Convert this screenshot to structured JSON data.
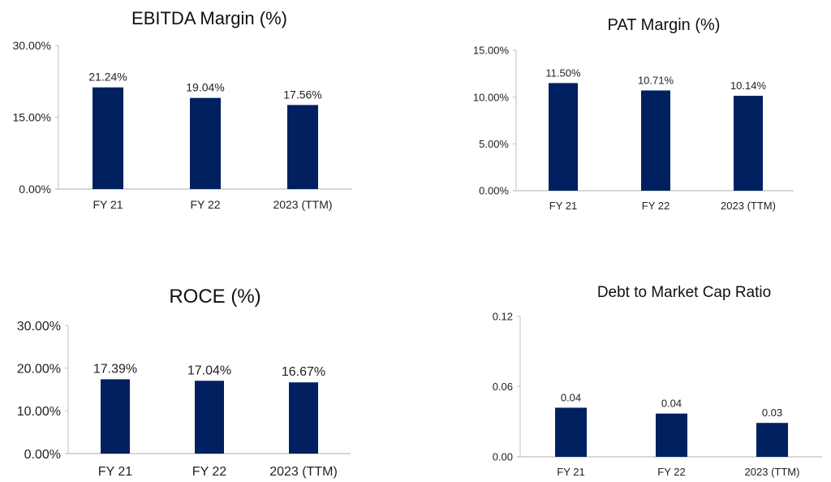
{
  "bar_color": "#002060",
  "axis_color": "#bfbfbf",
  "chart_data": [
    {
      "type": "bar",
      "title": "EBITDA Margin (%)",
      "xlabel": "",
      "ylabel": "",
      "categories": [
        "FY 21",
        "FY 22",
        "2023 (TTM)"
      ],
      "values": [
        21.24,
        19.04,
        17.56
      ],
      "value_labels": [
        "21.24%",
        "19.04%",
        "17.56%"
      ],
      "ylim": [
        0,
        30
      ],
      "yticks": [
        0,
        15,
        30
      ],
      "ytick_labels": [
        "0.00%",
        "15.00%",
        "30.00%"
      ],
      "grid": false,
      "legend": "none"
    },
    {
      "type": "bar",
      "title": "PAT Margin (%)",
      "xlabel": "",
      "ylabel": "",
      "categories": [
        "FY 21",
        "FY 22",
        "2023 (TTM)"
      ],
      "values": [
        11.5,
        10.71,
        10.14
      ],
      "value_labels": [
        "11.50%",
        "10.71%",
        "10.14%"
      ],
      "ylim": [
        0,
        15
      ],
      "yticks": [
        0,
        5,
        10,
        15
      ],
      "ytick_labels": [
        "0.00%",
        "5.00%",
        "10.00%",
        "15.00%"
      ],
      "grid": false,
      "legend": "none"
    },
    {
      "type": "bar",
      "title": "ROCE (%)",
      "xlabel": "",
      "ylabel": "",
      "categories": [
        "FY 21",
        "FY 22",
        "2023 (TTM)"
      ],
      "values": [
        17.39,
        17.04,
        16.67
      ],
      "value_labels": [
        "17.39%",
        "17.04%",
        "16.67%"
      ],
      "ylim": [
        0,
        30
      ],
      "yticks": [
        0,
        10,
        20,
        30
      ],
      "ytick_labels": [
        "0.00%",
        "10.00%",
        "20.00%",
        "30.00%"
      ],
      "grid": false,
      "legend": "none"
    },
    {
      "type": "bar",
      "title": "Debt to Market Cap Ratio",
      "xlabel": "",
      "ylabel": "",
      "categories": [
        "FY 21",
        "FY 22",
        "2023 (TTM)"
      ],
      "values": [
        0.042,
        0.037,
        0.029
      ],
      "value_labels": [
        "0.04",
        "0.04",
        "0.03"
      ],
      "ylim": [
        0,
        0.12
      ],
      "yticks": [
        0,
        0.06,
        0.12
      ],
      "ytick_labels": [
        "0.00",
        "0.06",
        "0.12"
      ],
      "grid": false,
      "legend": "none"
    }
  ]
}
